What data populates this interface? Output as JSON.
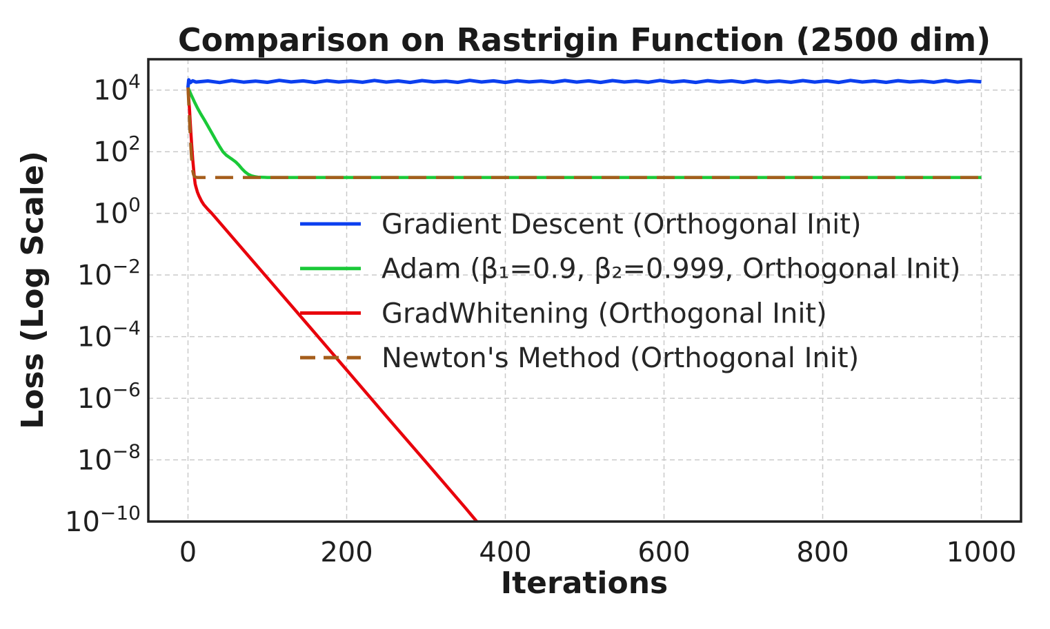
{
  "chart_data": {
    "type": "line",
    "title": "Comparison on Rastrigin Function (2500 dim)",
    "xlabel": "Iterations",
    "ylabel": "Loss (Log Scale)",
    "x_ticks": [
      0,
      200,
      400,
      600,
      800,
      1000
    ],
    "y_tick_exponents": [
      "4",
      "2",
      "0",
      "−2",
      "−4",
      "−6",
      "−8",
      "−10"
    ],
    "y_tick_exp_values": [
      4,
      2,
      0,
      -2,
      -4,
      -6,
      -8,
      -10
    ],
    "xlim": [
      -50,
      1050
    ],
    "ylim_log10": [
      -10,
      5
    ],
    "grid": true,
    "legend_position": "center-right, no frame",
    "colors": {
      "axis": "#212121",
      "grid": "#c9c9c9",
      "text": "#1a1a1a",
      "background": "#ffffff"
    },
    "series": [
      {
        "name": "Gradient Descent (Orthogonal Init)",
        "color": "#0b3fef",
        "style": "solid",
        "width": 5,
        "dash": null,
        "points": [
          [
            0,
            12000
          ],
          [
            1,
            21500
          ],
          [
            3,
            17500
          ],
          [
            6,
            20000
          ],
          [
            10,
            18200
          ],
          [
            25,
            19800
          ],
          [
            40,
            17600
          ],
          [
            55,
            20400
          ],
          [
            70,
            18100
          ],
          [
            85,
            19600
          ],
          [
            100,
            17800
          ],
          [
            115,
            20600
          ],
          [
            130,
            18400
          ],
          [
            145,
            19900
          ],
          [
            160,
            17700
          ],
          [
            175,
            20200
          ],
          [
            190,
            18300
          ],
          [
            205,
            19700
          ],
          [
            220,
            17900
          ],
          [
            235,
            20500
          ],
          [
            250,
            18200
          ],
          [
            265,
            19800
          ],
          [
            280,
            17700
          ],
          [
            295,
            20300
          ],
          [
            310,
            18400
          ],
          [
            325,
            19600
          ],
          [
            340,
            17800
          ],
          [
            355,
            20600
          ],
          [
            370,
            18300
          ],
          [
            385,
            19900
          ],
          [
            400,
            17700
          ],
          [
            415,
            20200
          ],
          [
            430,
            18400
          ],
          [
            445,
            19700
          ],
          [
            460,
            17900
          ],
          [
            475,
            20400
          ],
          [
            490,
            18200
          ],
          [
            505,
            19900
          ],
          [
            520,
            17700
          ],
          [
            535,
            20300
          ],
          [
            550,
            18300
          ],
          [
            565,
            19700
          ],
          [
            580,
            17900
          ],
          [
            595,
            20500
          ],
          [
            610,
            18200
          ],
          [
            625,
            19800
          ],
          [
            640,
            17700
          ],
          [
            655,
            20200
          ],
          [
            670,
            18400
          ],
          [
            685,
            19900
          ],
          [
            700,
            17800
          ],
          [
            715,
            20400
          ],
          [
            730,
            18300
          ],
          [
            745,
            19700
          ],
          [
            760,
            17900
          ],
          [
            775,
            20300
          ],
          [
            790,
            18200
          ],
          [
            805,
            19900
          ],
          [
            820,
            17700
          ],
          [
            835,
            20500
          ],
          [
            850,
            18300
          ],
          [
            865,
            19800
          ],
          [
            880,
            17800
          ],
          [
            895,
            20200
          ],
          [
            910,
            18400
          ],
          [
            925,
            19700
          ],
          [
            940,
            17900
          ],
          [
            955,
            20400
          ],
          [
            970,
            18200
          ],
          [
            985,
            19900
          ],
          [
            1000,
            18600
          ]
        ]
      },
      {
        "name": "Adam (β₁=0.9, β₂=0.999, Orthogonal Init)",
        "color": "#1ac938",
        "style": "solid",
        "width": 4.5,
        "dash": null,
        "points": [
          [
            0,
            12000
          ],
          [
            4,
            7000
          ],
          [
            8,
            4200
          ],
          [
            12,
            2600
          ],
          [
            16,
            1700
          ],
          [
            20,
            1150
          ],
          [
            24,
            760
          ],
          [
            28,
            500
          ],
          [
            32,
            330
          ],
          [
            36,
            215
          ],
          [
            40,
            145
          ],
          [
            44,
            100
          ],
          [
            48,
            78
          ],
          [
            52,
            66
          ],
          [
            56,
            56
          ],
          [
            60,
            47
          ],
          [
            64,
            37
          ],
          [
            68,
            28
          ],
          [
            72,
            22
          ],
          [
            76,
            18.5
          ],
          [
            80,
            16.5
          ],
          [
            84,
            15.6
          ],
          [
            88,
            15.0
          ],
          [
            92,
            14.8
          ],
          [
            96,
            14.7
          ],
          [
            100,
            14.6
          ],
          [
            1000,
            14.6
          ]
        ]
      },
      {
        "name": "GradWhitening (Orthogonal Init)",
        "color": "#e8000b",
        "style": "solid",
        "width": 4.5,
        "dash": null,
        "points": [
          [
            0,
            12000
          ],
          [
            1,
            5200
          ],
          [
            2,
            2200
          ],
          [
            3,
            800
          ],
          [
            4,
            300
          ],
          [
            5,
            120
          ],
          [
            6,
            55
          ],
          [
            7,
            28
          ],
          [
            8,
            15
          ],
          [
            9,
            9
          ],
          [
            10,
            7.2
          ],
          [
            12,
            4.8
          ],
          [
            14,
            3.6
          ],
          [
            17,
            2.5
          ],
          [
            20,
            1.9
          ],
          [
            25,
            1.35
          ],
          [
            30,
            1.0
          ],
          [
            60,
            0.127
          ],
          [
            100,
            0.0081
          ],
          [
            150,
            0.00026
          ],
          [
            200,
            8.3e-06
          ],
          [
            250,
            2.6e-07
          ],
          [
            300,
            8.5e-09
          ],
          [
            350,
            2.7e-10
          ],
          [
            364,
            1e-10
          ]
        ]
      },
      {
        "name": "Newton's Method (Orthogonal Init)",
        "color": "#a55d1b",
        "style": "dashed",
        "width": 4.5,
        "dash": "26 14",
        "points": [
          [
            0,
            12000
          ],
          [
            1,
            3500
          ],
          [
            2,
            900
          ],
          [
            3,
            280
          ],
          [
            4,
            95
          ],
          [
            5,
            40
          ],
          [
            6,
            24
          ],
          [
            7,
            18
          ],
          [
            8,
            15.8
          ],
          [
            10,
            14.8
          ],
          [
            12,
            14.6
          ],
          [
            1000,
            14.6
          ]
        ]
      }
    ]
  }
}
